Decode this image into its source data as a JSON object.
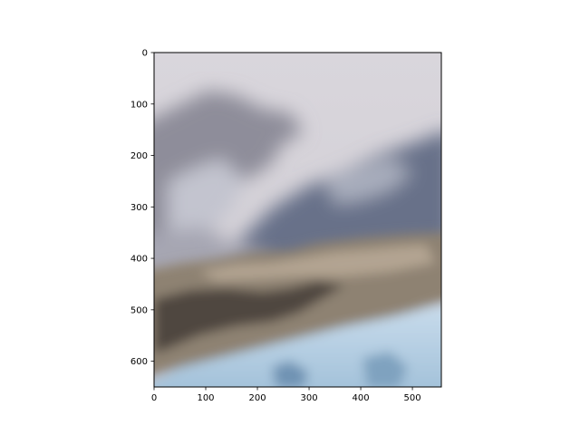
{
  "chart_data": {
    "type": "image",
    "image_description": "blurred landscape: hazy grey sky, snow-dusted grey-blue mountains, brown rocky ridge, pale blue glacial ice at bottom",
    "image_width": 556,
    "image_height": 650,
    "xlim": [
      0,
      556
    ],
    "ylim": [
      650,
      0
    ],
    "x_ticks": [
      0,
      100,
      200,
      300,
      400,
      500
    ],
    "y_ticks": [
      0,
      100,
      200,
      300,
      400,
      500,
      600
    ],
    "x_tick_labels": [
      "0",
      "100",
      "200",
      "300",
      "400",
      "500"
    ],
    "y_tick_labels": [
      "0",
      "100",
      "200",
      "300",
      "400",
      "500",
      "600"
    ],
    "title": "",
    "xlabel": "",
    "ylabel": "",
    "grid": false
  }
}
